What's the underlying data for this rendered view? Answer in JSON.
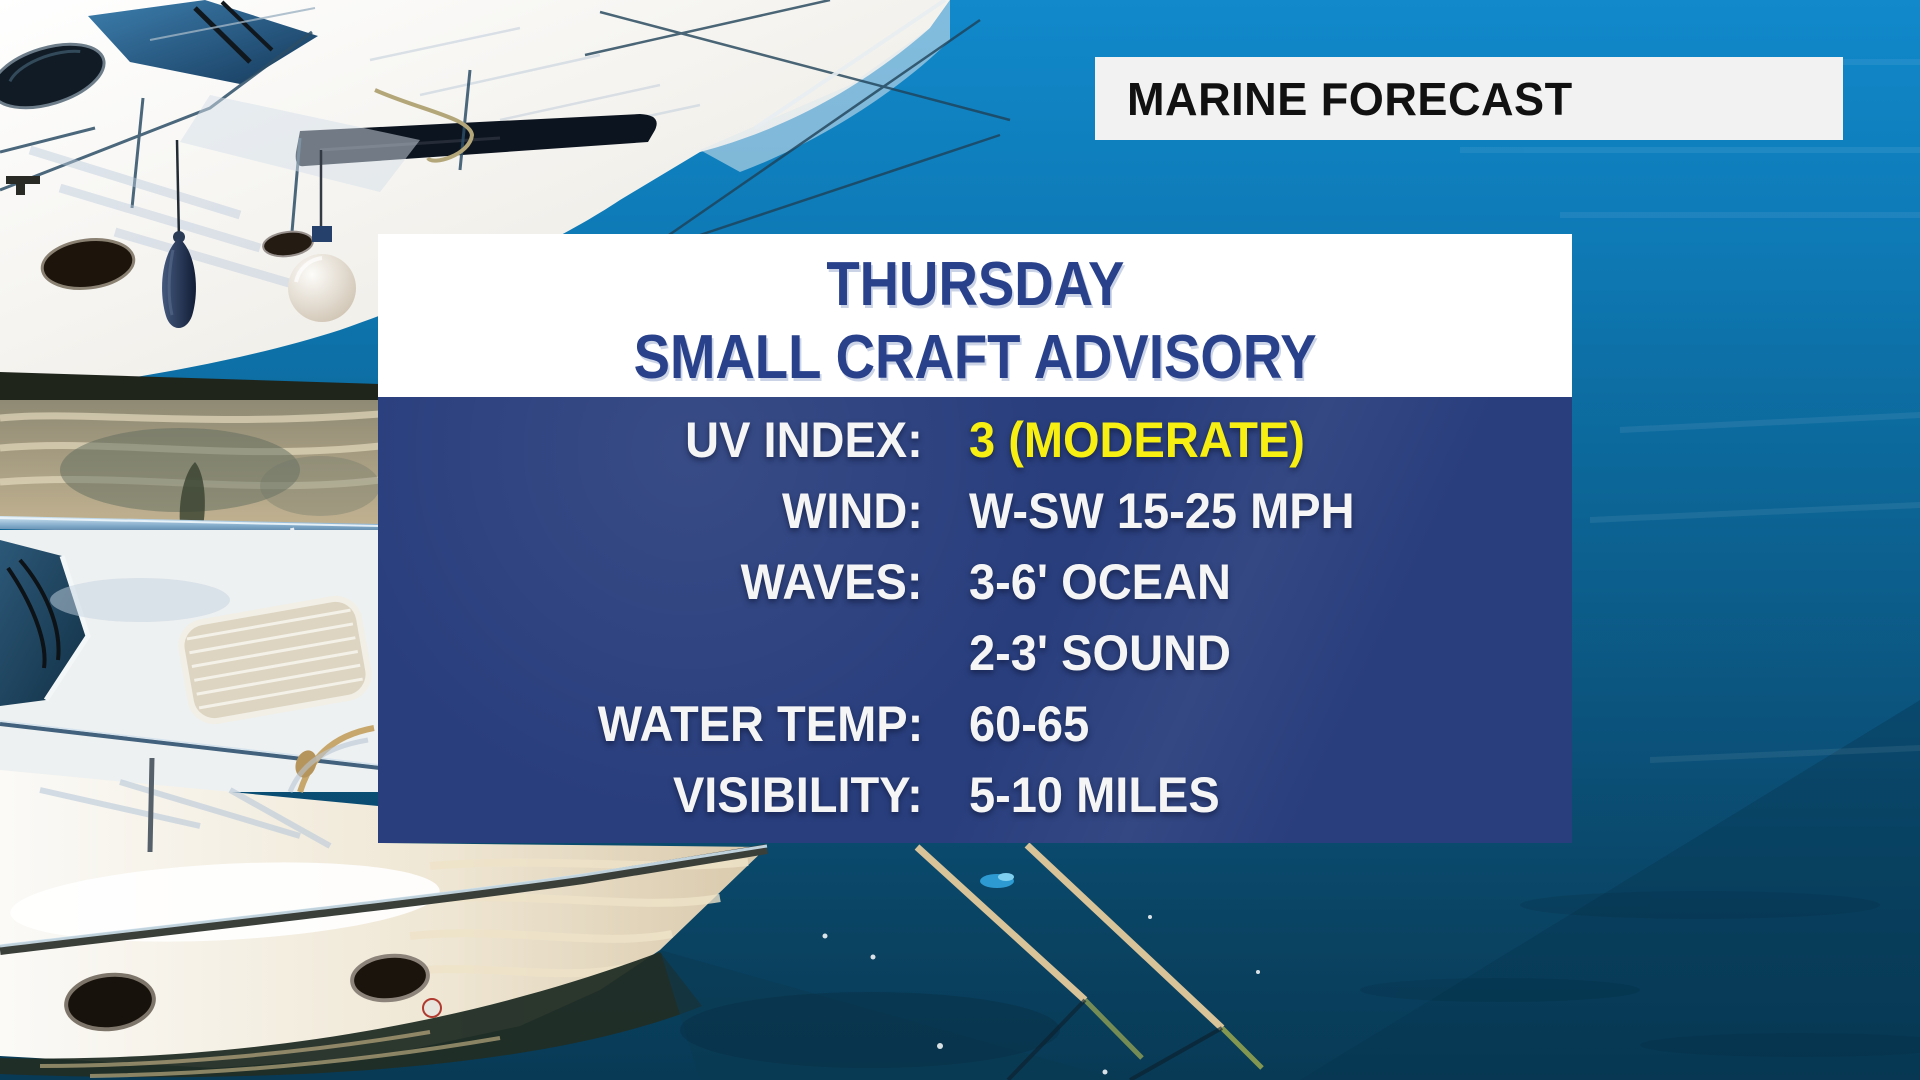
{
  "banner": {
    "label": "MARINE FORECAST"
  },
  "card": {
    "title_line1": "THURSDAY",
    "title_line2": "SMALL CRAFT ADVISORY",
    "rows": [
      {
        "label": "UV INDEX:",
        "value": "3 (MODERATE)",
        "value_color": "yellow"
      },
      {
        "label": "WIND:",
        "value": "W-SW 15-25 MPH",
        "value_color": "white"
      },
      {
        "label": "WAVES:",
        "value": "3-6' OCEAN",
        "value_color": "white"
      },
      {
        "label": "",
        "value": "2-3' SOUND",
        "value_color": "white"
      },
      {
        "label": "WATER TEMP:",
        "value": "60-65",
        "value_color": "white"
      },
      {
        "label": "VISIBILITY:",
        "value": "5-10 MILES",
        "value_color": "white"
      }
    ]
  },
  "colors": {
    "panel_navy": "#293e7d",
    "title_navy": "#29418b",
    "value_yellow": "#f7ee12",
    "text_white": "#f5f5f5",
    "banner_bg": "#f2f2f2",
    "banner_text": "#111111",
    "water_top": "#1189cb",
    "water_bottom": "#083a55"
  }
}
